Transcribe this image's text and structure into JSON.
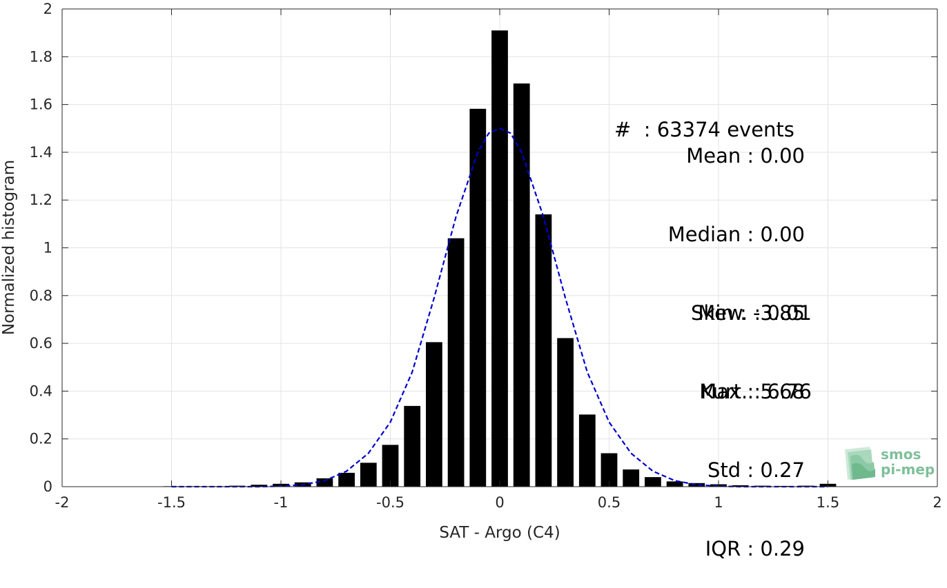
{
  "chart_data": {
    "type": "bar",
    "xlabel": "SAT - Argo (C4)",
    "ylabel": "Normalized histogram",
    "xlim": [
      -2,
      2
    ],
    "ylim": [
      0,
      2
    ],
    "xticks": [
      -2,
      -1.5,
      -1,
      -0.5,
      0,
      0.5,
      1,
      1.5,
      2
    ],
    "xtick_labels": [
      "-2",
      "-1.5",
      "-1",
      "-0.5",
      "0",
      "0.5",
      "1",
      "1.5",
      "2"
    ],
    "yticks": [
      0,
      0.2,
      0.4,
      0.6,
      0.8,
      1,
      1.2,
      1.4,
      1.6,
      1.8,
      2
    ],
    "ytick_labels": [
      "0",
      "0.2",
      "0.4",
      "0.6",
      "0.8",
      "1",
      "1.2",
      "1.4",
      "1.6",
      "1.8",
      "2"
    ],
    "grid": true,
    "bar_color": "#000000",
    "fit_color": "#0000cc",
    "bars": {
      "x": [
        -1.5,
        -1.4,
        -1.3,
        -1.2,
        -1.1,
        -1.0,
        -0.9,
        -0.8,
        -0.7,
        -0.6,
        -0.5,
        -0.4,
        -0.3,
        -0.2,
        -0.1,
        0.0,
        0.1,
        0.2,
        0.3,
        0.4,
        0.5,
        0.6,
        0.7,
        0.8,
        0.9,
        1.0,
        1.1,
        1.2,
        1.3,
        1.4,
        1.5
      ],
      "values": [
        0.002,
        0.002,
        0.002,
        0.004,
        0.008,
        0.012,
        0.018,
        0.035,
        0.058,
        0.1,
        0.175,
        0.338,
        0.605,
        1.04,
        1.582,
        1.91,
        1.688,
        1.14,
        0.622,
        0.302,
        0.14,
        0.072,
        0.04,
        0.022,
        0.015,
        0.01,
        0.006,
        0.004,
        0.003,
        0.004,
        0.012
      ]
    },
    "fit_curve": {
      "style": "dashed",
      "x": [
        -1.5,
        -1.3,
        -1.1,
        -1.0,
        -0.9,
        -0.8,
        -0.7,
        -0.6,
        -0.5,
        -0.4,
        -0.3,
        -0.2,
        -0.1,
        -0.05,
        0.0,
        0.05,
        0.1,
        0.2,
        0.3,
        0.4,
        0.5,
        0.6,
        0.7,
        0.8,
        0.9,
        1.0,
        1.1,
        1.3,
        1.5
      ],
      "y": [
        0.0,
        0.0,
        0.0,
        0.002,
        0.008,
        0.025,
        0.065,
        0.14,
        0.27,
        0.48,
        0.79,
        1.13,
        1.4,
        1.48,
        1.5,
        1.48,
        1.4,
        1.13,
        0.79,
        0.48,
        0.27,
        0.14,
        0.065,
        0.025,
        0.008,
        0.002,
        0.0,
        0.0,
        0.0
      ]
    },
    "annotations": [
      "#  : 63374 events",
      "Mean : 0.00",
      "Median : 0.00",
      "Min : -3.85",
      "Max : 5.68",
      "Std : 0.27",
      "IQR : 0.29",
      "Skew. : 0.01",
      "Kurt. : 6.76"
    ]
  },
  "logo": {
    "line1": "smos",
    "line2": "pi-mep",
    "color": "#7fbf9a"
  }
}
